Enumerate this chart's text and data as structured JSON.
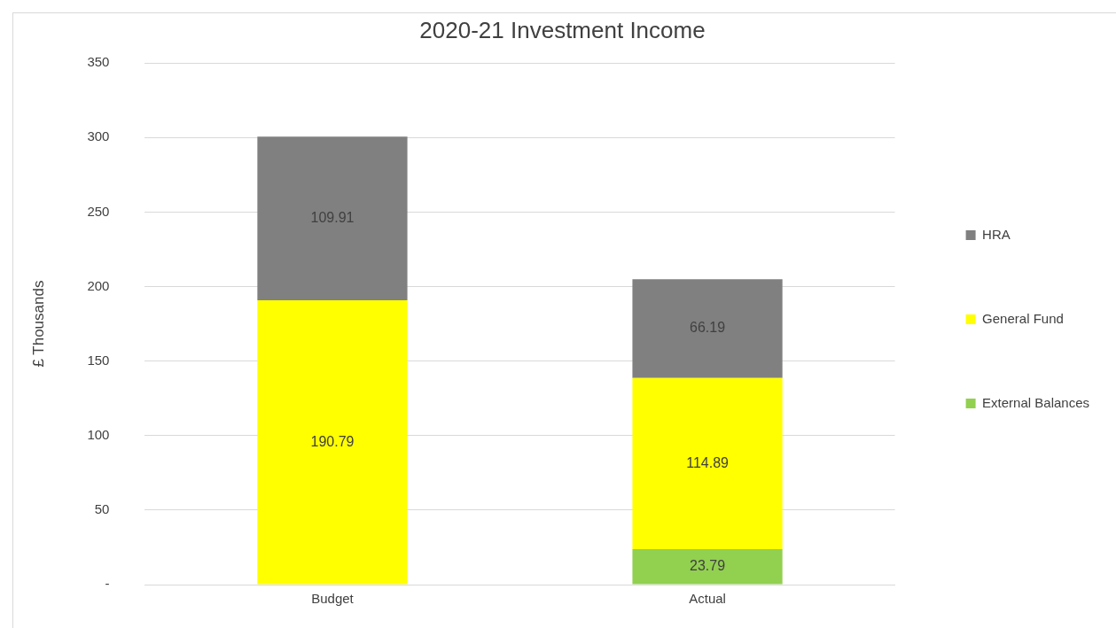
{
  "chart_data": {
    "type": "bar",
    "title": "2020-21 Investment Income",
    "ylabel": "£ Thousands",
    "categories": [
      "Budget",
      "Actual"
    ],
    "stacked": true,
    "series": [
      {
        "name": "External Balances",
        "color": "#92d050",
        "values": [
          null,
          23.79
        ]
      },
      {
        "name": "General Fund",
        "color": "#ffff00",
        "values": [
          190.79,
          114.89
        ]
      },
      {
        "name": "HRA",
        "color": "#808080",
        "values": [
          109.91,
          66.19
        ]
      }
    ],
    "ylim": [
      0,
      350
    ],
    "yticks": [
      {
        "value": 0,
        "label": "-"
      },
      50,
      100,
      150,
      200,
      250,
      300,
      350
    ],
    "grid": "y",
    "legend": "right",
    "data_labels": true
  }
}
